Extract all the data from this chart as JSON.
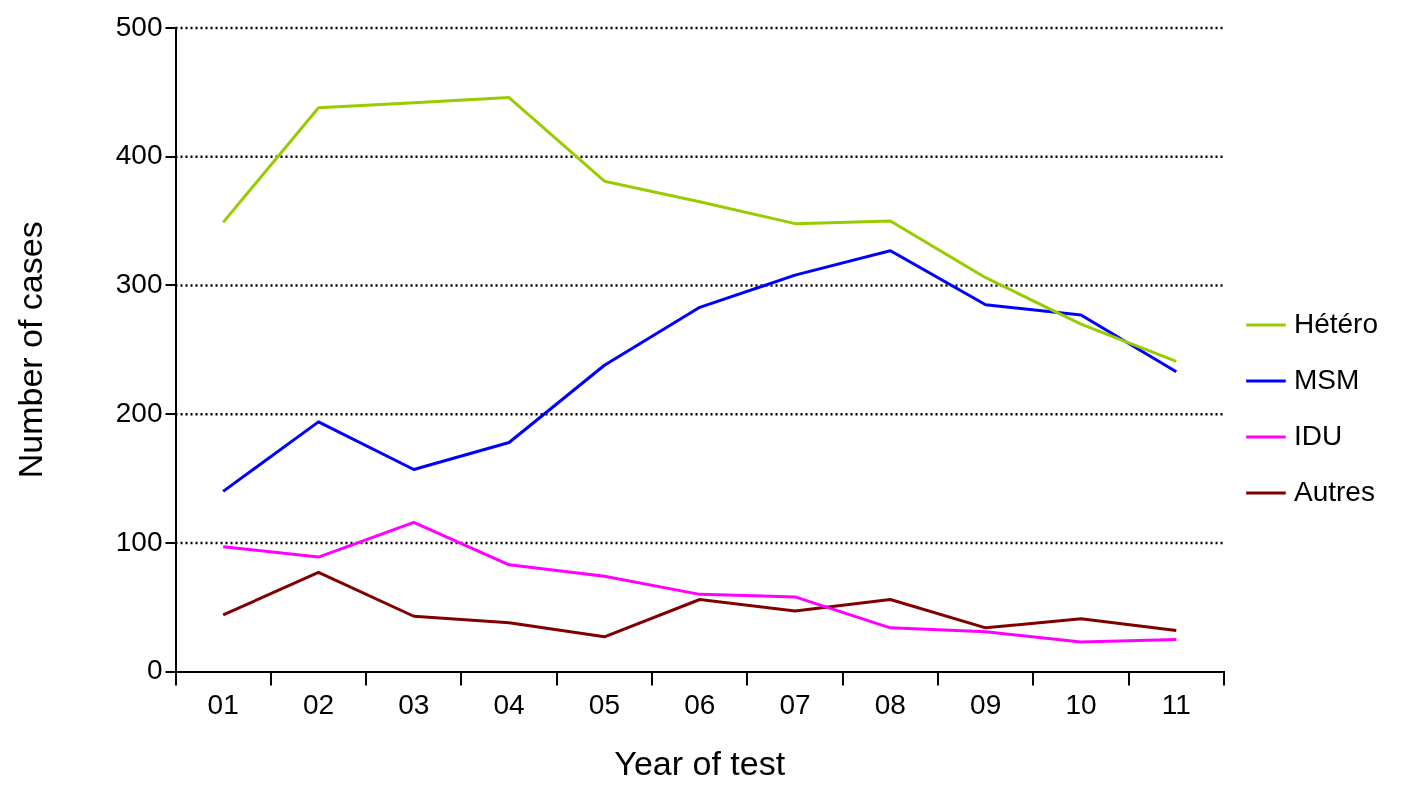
{
  "chart_data": {
    "type": "line",
    "xlabel": "Year of test",
    "ylabel": "Number of cases",
    "categories": [
      "01",
      "02",
      "03",
      "04",
      "05",
      "06",
      "07",
      "08",
      "09",
      "10",
      "11"
    ],
    "series": [
      {
        "name": "Hétéro",
        "color": "#99cc00",
        "values": [
          349,
          438,
          442,
          446,
          381,
          365,
          348,
          350,
          306,
          270,
          241
        ]
      },
      {
        "name": "MSM",
        "color": "#0000ff",
        "values": [
          140,
          194,
          157,
          178,
          238,
          283,
          308,
          327,
          285,
          277,
          233
        ]
      },
      {
        "name": "IDU",
        "color": "#ff00ff",
        "values": [
          97,
          89,
          116,
          83,
          74,
          60,
          58,
          34,
          31,
          23,
          25
        ]
      },
      {
        "name": "Autres",
        "color": "#800000",
        "values": [
          44,
          77,
          43,
          38,
          27,
          56,
          47,
          56,
          34,
          41,
          32
        ]
      }
    ],
    "ylim": [
      0,
      500
    ],
    "yticks": [
      0,
      100,
      200,
      300,
      400,
      500
    ],
    "grid": "y",
    "legend": "right",
    "marker": "none",
    "line_style": "solid"
  }
}
